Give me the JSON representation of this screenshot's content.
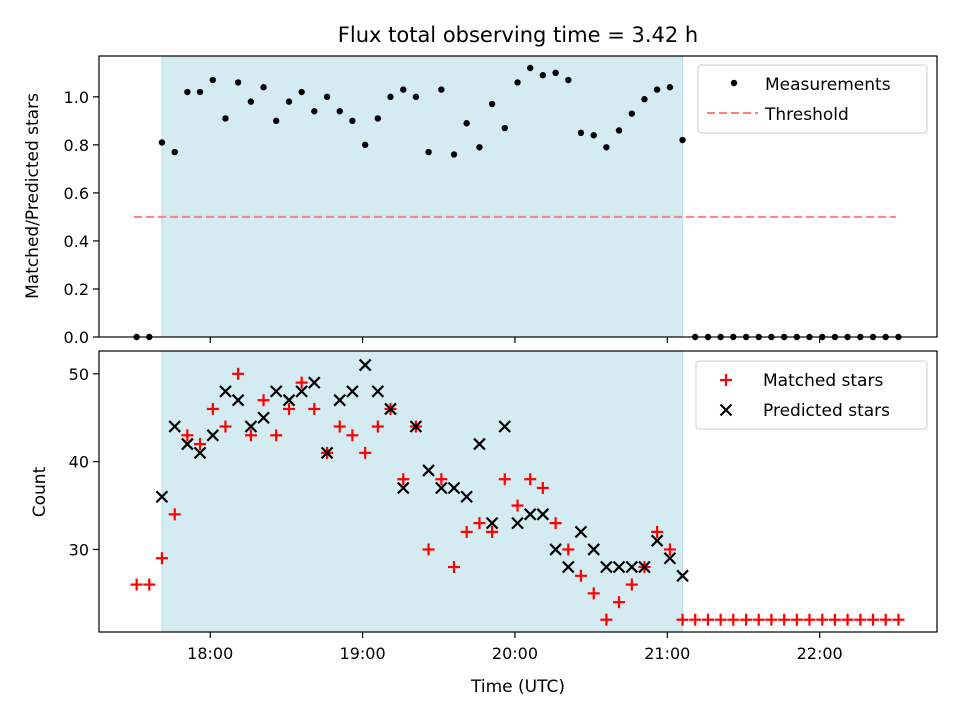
{
  "title": "Flux total observing time = 3.42 h",
  "colors": {
    "measurement": "#000000",
    "threshold": "#ff7f7f",
    "matched": "#ff0000",
    "predicted": "#000000",
    "shade": "#add8e6"
  },
  "chart_data": [
    {
      "type": "scatter",
      "ylabel": "Matched/Predicted stars",
      "xlim": [
        17.27,
        22.77
      ],
      "ylim": [
        0,
        1.17
      ],
      "yticks": [
        0.0,
        0.2,
        0.4,
        0.6,
        0.8,
        1.0
      ],
      "ytick_labels": [
        "0.0",
        "0.2",
        "0.4",
        "0.6",
        "0.8",
        "1.0"
      ],
      "xticks": [
        18,
        19,
        20,
        21,
        22
      ],
      "shaded_span": [
        17.683,
        21.1
      ],
      "legend_position": "upper-right",
      "legend": [
        "Measurements",
        "Threshold"
      ],
      "threshold": {
        "name": "Threshold",
        "x": [
          17.5,
          22.5
        ],
        "y": 0.5
      },
      "series": [
        {
          "name": "Measurements",
          "marker": "dot",
          "x": [
            17.517,
            17.6,
            17.683,
            17.767,
            17.85,
            17.933,
            18.017,
            18.1,
            18.183,
            18.267,
            18.35,
            18.433,
            18.517,
            18.6,
            18.683,
            18.767,
            18.85,
            18.933,
            19.017,
            19.1,
            19.183,
            19.267,
            19.35,
            19.433,
            19.517,
            19.6,
            19.683,
            19.767,
            19.85,
            19.933,
            20.017,
            20.1,
            20.183,
            20.267,
            20.35,
            20.433,
            20.517,
            20.6,
            20.683,
            20.767,
            20.85,
            20.933,
            21.017,
            21.1,
            21.183,
            21.267,
            21.35,
            21.433,
            21.517,
            21.6,
            21.683,
            21.767,
            21.85,
            21.933,
            22.017,
            22.1,
            22.183,
            22.267,
            22.35,
            22.433,
            22.517
          ],
          "y": [
            0,
            0,
            0.81,
            0.77,
            1.02,
            1.02,
            1.07,
            0.91,
            1.06,
            0.98,
            1.04,
            0.9,
            0.98,
            1.02,
            0.94,
            1.0,
            0.94,
            0.9,
            0.8,
            0.91,
            1.0,
            1.03,
            1.0,
            0.77,
            1.03,
            0.76,
            0.89,
            0.79,
            0.97,
            0.87,
            1.06,
            1.12,
            1.09,
            1.1,
            1.07,
            0.85,
            0.84,
            0.79,
            0.86,
            0.93,
            0.99,
            1.03,
            1.04,
            0.82,
            0,
            0,
            0,
            0,
            0,
            0,
            0,
            0,
            0,
            0,
            0,
            0,
            0,
            0,
            0,
            0,
            0
          ]
        }
      ]
    },
    {
      "type": "scatter",
      "xlabel": "Time (UTC)",
      "ylabel": "Count",
      "xlim": [
        17.27,
        22.77
      ],
      "ylim": [
        20.6,
        52.6
      ],
      "yticks": [
        30,
        40,
        50
      ],
      "ytick_labels": [
        "30",
        "40",
        "50"
      ],
      "xticks": [
        18,
        19,
        20,
        21,
        22
      ],
      "xtick_labels": [
        "18:00",
        "19:00",
        "20:00",
        "21:00",
        "22:00"
      ],
      "shaded_span": [
        17.683,
        21.1
      ],
      "legend_position": "upper-right",
      "legend": [
        "Matched stars",
        "Predicted stars"
      ],
      "series": [
        {
          "name": "Matched stars",
          "marker": "plus",
          "x": [
            17.517,
            17.6,
            17.683,
            17.767,
            17.85,
            17.933,
            18.017,
            18.1,
            18.183,
            18.267,
            18.35,
            18.433,
            18.517,
            18.6,
            18.683,
            18.767,
            18.85,
            18.933,
            19.017,
            19.1,
            19.183,
            19.267,
            19.35,
            19.433,
            19.517,
            19.6,
            19.683,
            19.767,
            19.85,
            19.933,
            20.017,
            20.1,
            20.183,
            20.267,
            20.35,
            20.433,
            20.517,
            20.6,
            20.683,
            20.767,
            20.85,
            20.933,
            21.017,
            21.1,
            21.183,
            21.267,
            21.35,
            21.433,
            21.517,
            21.6,
            21.683,
            21.767,
            21.85,
            21.933,
            22.017,
            22.1,
            22.183,
            22.267,
            22.35,
            22.433,
            22.517
          ],
          "y": [
            26,
            26,
            29,
            34,
            43,
            42,
            46,
            44,
            50,
            43,
            47,
            43,
            46,
            49,
            46,
            41,
            44,
            43,
            41,
            44,
            46,
            38,
            44,
            30,
            38,
            28,
            32,
            33,
            32,
            38,
            35,
            38,
            37,
            33,
            30,
            27,
            25,
            22,
            24,
            26,
            28,
            32,
            30,
            22,
            22,
            22,
            22,
            22,
            22,
            22,
            22,
            22,
            22,
            22,
            22,
            22,
            22,
            22,
            22,
            22,
            22
          ]
        },
        {
          "name": "Predicted stars",
          "marker": "x",
          "x": [
            17.683,
            17.767,
            17.85,
            17.933,
            18.017,
            18.1,
            18.183,
            18.267,
            18.35,
            18.433,
            18.517,
            18.6,
            18.683,
            18.767,
            18.85,
            18.933,
            19.017,
            19.1,
            19.183,
            19.267,
            19.35,
            19.433,
            19.517,
            19.6,
            19.683,
            19.767,
            19.85,
            19.933,
            20.017,
            20.1,
            20.183,
            20.267,
            20.35,
            20.433,
            20.517,
            20.6,
            20.683,
            20.767,
            20.85,
            20.933,
            21.017,
            21.1
          ],
          "y": [
            36,
            44,
            42,
            41,
            43,
            48,
            47,
            44,
            45,
            48,
            47,
            48,
            49,
            41,
            47,
            48,
            51,
            48,
            46,
            37,
            44,
            39,
            37,
            37,
            36,
            42,
            33,
            44,
            33,
            34,
            34,
            30,
            28,
            32,
            30,
            28,
            28,
            28,
            28,
            31,
            29,
            27
          ]
        }
      ]
    }
  ]
}
